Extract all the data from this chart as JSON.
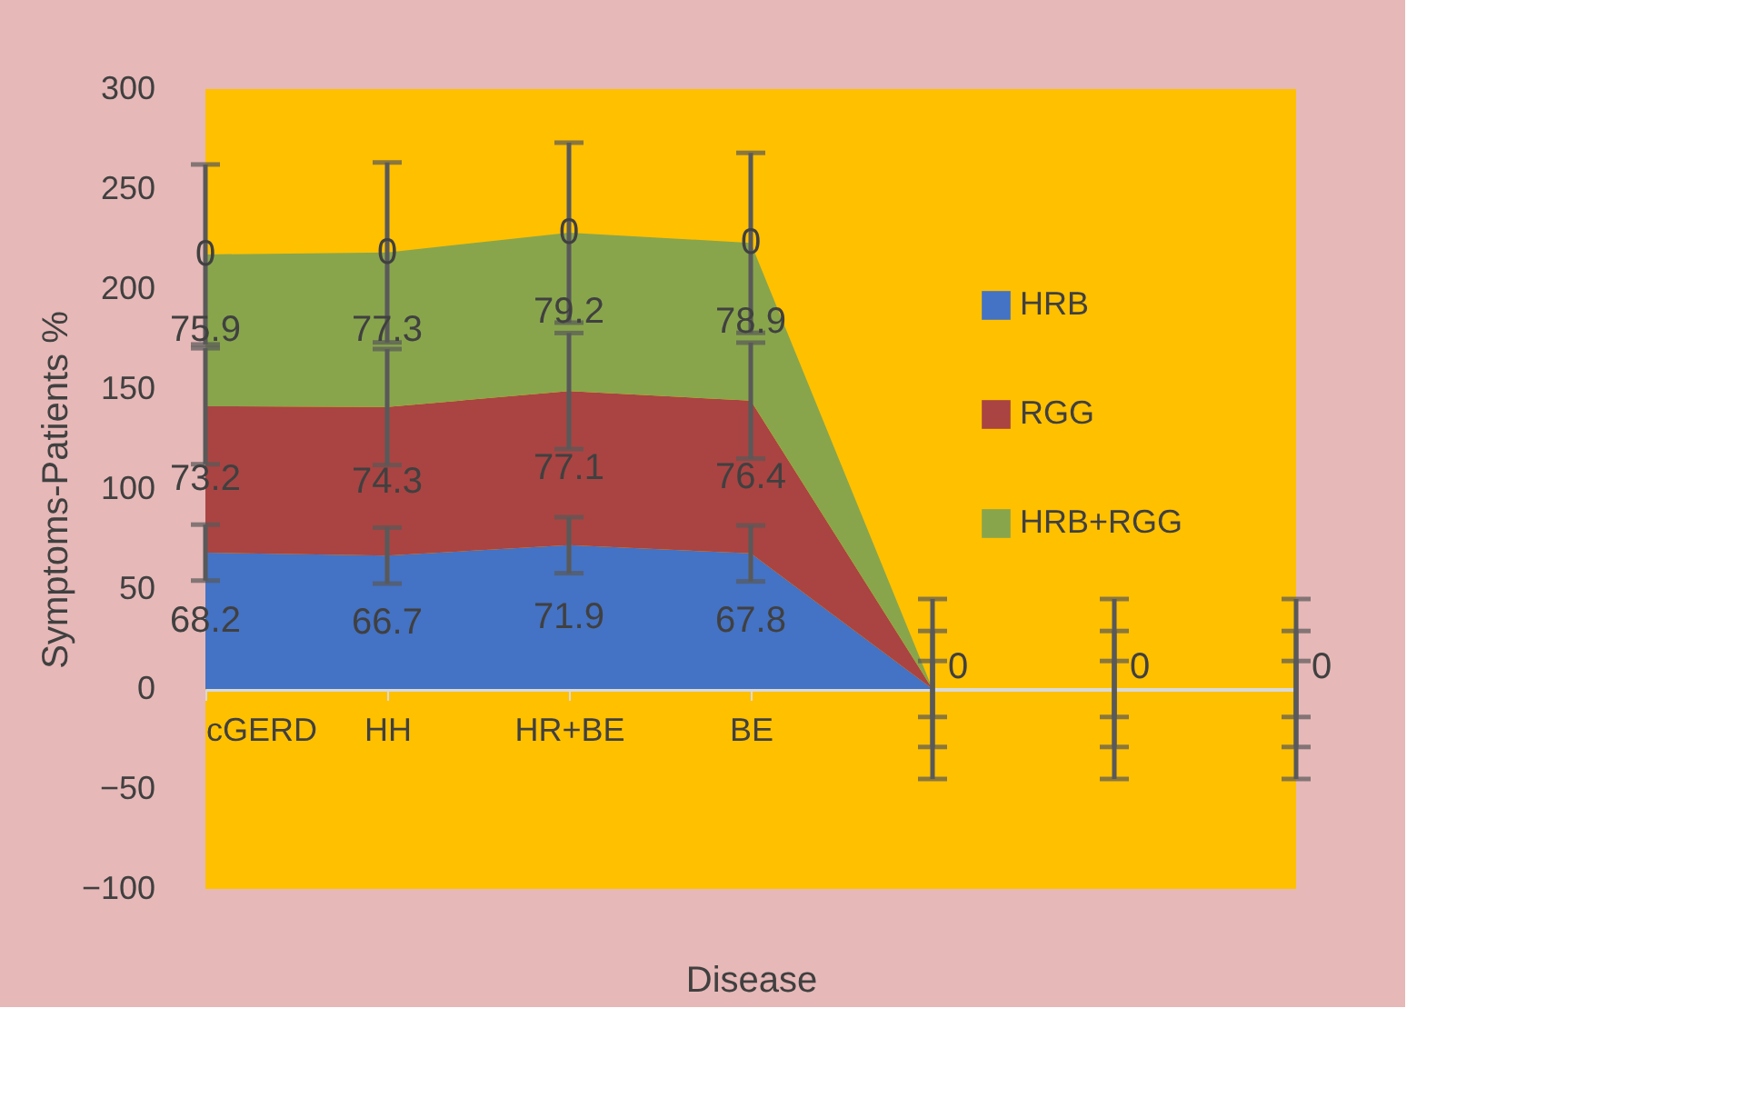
{
  "chart_data": {
    "type": "area",
    "stacked": true,
    "xlabel": "Disease",
    "ylabel": "Symptoms-Patients %",
    "categories": [
      "cGERD",
      "HH",
      "HR+BE",
      "BE",
      null,
      null,
      null
    ],
    "series": [
      {
        "name": "HRB",
        "color": "#4472c4",
        "values": [
          68.2,
          66.7,
          71.9,
          67.8,
          0,
          0,
          0
        ],
        "errors": [
          14,
          14,
          14,
          14,
          14,
          14,
          14
        ],
        "value_labels": [
          "68.2",
          "66.7",
          "71.9",
          "67.8",
          null,
          null,
          null
        ]
      },
      {
        "name": "RGG",
        "color": "#a94442",
        "values": [
          73.2,
          74.3,
          77.1,
          76.4,
          0,
          0,
          0
        ],
        "errors": [
          29,
          29,
          29,
          29,
          29,
          29,
          29
        ],
        "value_labels": [
          "73.2",
          "74.3",
          "77.1",
          "76.4",
          null,
          null,
          null
        ]
      },
      {
        "name": "HRB+RGG",
        "color": "#88a54c",
        "values": [
          75.9,
          77.3,
          79.2,
          78.9,
          0,
          0,
          0
        ],
        "errors": [
          45,
          45,
          45,
          45,
          45,
          45,
          45
        ],
        "value_labels": [
          "75.9",
          "77.3",
          "79.2",
          "78.9",
          "0",
          "0",
          "0"
        ]
      }
    ],
    "annotations": [
      {
        "text": "0",
        "x": "cGERD",
        "y": 217.3
      },
      {
        "text": "0",
        "x": "HH",
        "y": 218.3
      },
      {
        "text": "0",
        "x": "HR+BE",
        "y": 228.2
      },
      {
        "text": "0",
        "x": "BE",
        "y": 223.1
      }
    ],
    "ylim": [
      -100,
      300
    ],
    "yticks": [
      -100,
      -50,
      0,
      50,
      100,
      150,
      200,
      250,
      300
    ],
    "legend": "right",
    "grid": false
  }
}
